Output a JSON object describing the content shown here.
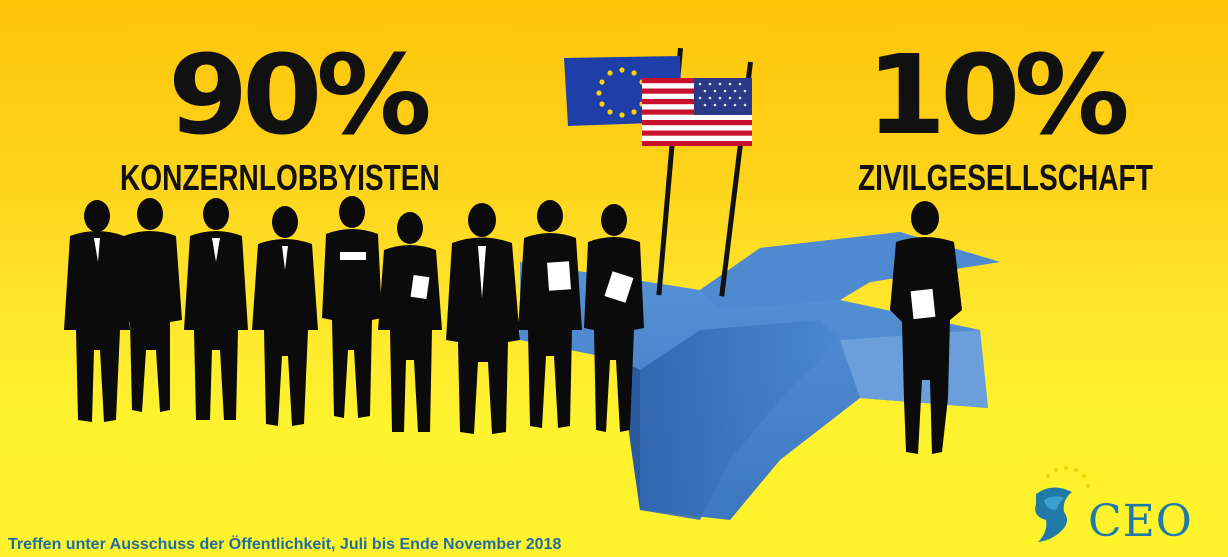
{
  "left_stat": {
    "value": "90%",
    "label": "KONZERNLOBBYISTEN"
  },
  "right_stat": {
    "value": "10%",
    "label": "ZIVILGESELLSCHAFT"
  },
  "caption": "Treffen unter Ausschuss der Öffentlichkeit, Juli bis Ende November 2018",
  "logo": {
    "text": "CEO",
    "icon": "stars-head-icon"
  },
  "flags": [
    "eu-flag-icon",
    "us-flag-icon"
  ],
  "figures": {
    "left_group_count": 9,
    "right_group_count": 1
  },
  "colors": {
    "background_top": "#fec508",
    "background_bottom": "#fff32c",
    "silhouette": "#0b0b0b",
    "table_blue": "#3d7dc9",
    "caption_blue": "#1e6f9f",
    "eu_blue": "#1f3fa8",
    "us_red": "#c8102e",
    "us_blue": "#2a3a86"
  }
}
